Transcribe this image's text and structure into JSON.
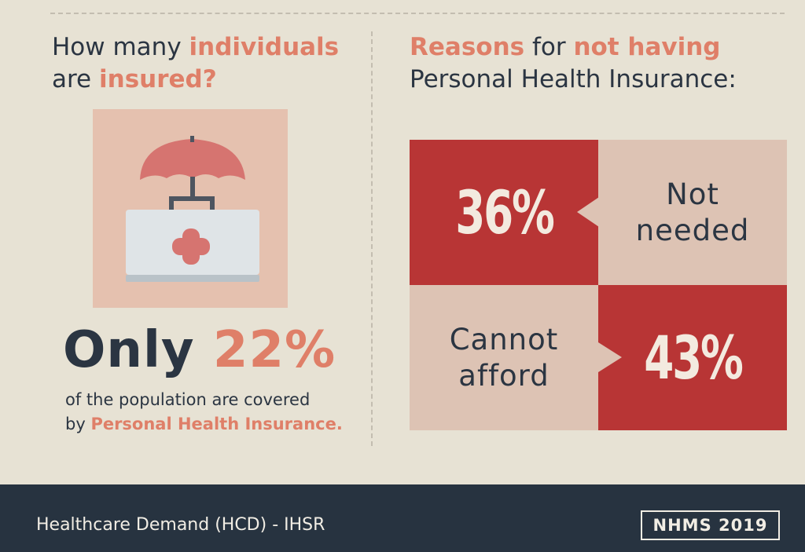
{
  "left": {
    "title_part1": "How many ",
    "title_highlight1": "individuals",
    "title_part2": "are ",
    "title_highlight2": "insured?",
    "icon": "umbrella-medical-kit-icon",
    "only_word": "Only",
    "only_percent": "22%",
    "sub_line1": "of the population are covered",
    "sub_line2_prefix": "by ",
    "sub_line2_highlight": "Personal Health Insurance."
  },
  "right": {
    "title_highlight1": "Reasons",
    "title_part1": " for ",
    "title_highlight2": "not having",
    "title_line2": "Personal Health Insurance:",
    "reasons": [
      {
        "percent": "36%",
        "label_line1": "Not",
        "label_line2": "needed"
      },
      {
        "percent": "43%",
        "label_line1": "Cannot",
        "label_line2": "afford"
      }
    ]
  },
  "footer": {
    "source": "Healthcare Demand (HCD) - IHSR",
    "badge": "NHMS 2019"
  },
  "colors": {
    "background": "#e7e2d4",
    "accent": "#df7f68",
    "dark": "#2b3542",
    "red": "#b83535",
    "pink": "#ddc3b4",
    "footer": "#273340"
  }
}
